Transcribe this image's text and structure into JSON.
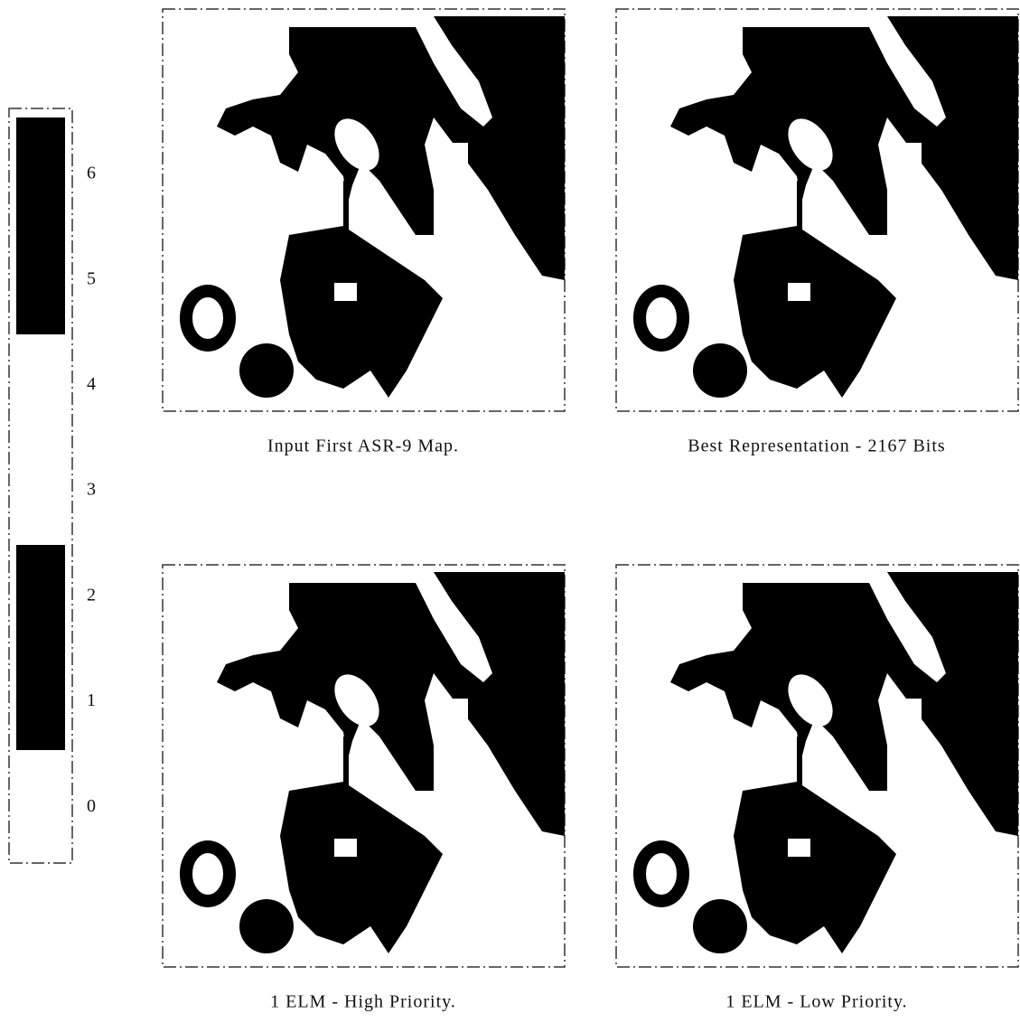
{
  "colorbar": {
    "labels": [
      6,
      5,
      4,
      3,
      2,
      1,
      0
    ]
  },
  "panels": [
    {
      "caption": "Input First ASR-9 Map."
    },
    {
      "caption": "Best Representation - 2167 Bits"
    },
    {
      "caption": "1 ELM - High Priority."
    },
    {
      "caption": "1 ELM - Low Priority."
    }
  ]
}
